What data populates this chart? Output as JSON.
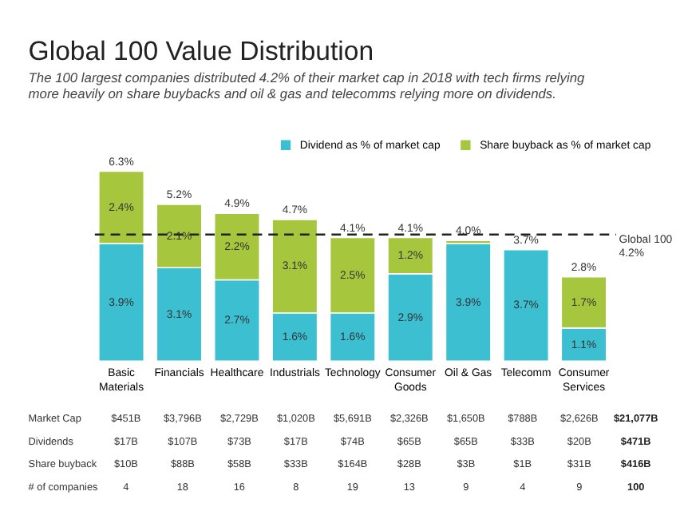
{
  "chart_data": {
    "type": "bar",
    "stacked": true,
    "title": "Global 100 Value Distribution",
    "subtitle": "The 100 largest companies distributed 4.2% of their market cap in 2018 with tech firms relying more heavily on share buybacks and oil & gas and telecomms relying more on dividends.",
    "categories": [
      "Basic Materials",
      "Financials",
      "Healthcare",
      "Industrials",
      "Technology",
      "Consumer Goods",
      "Oil & Gas",
      "Telecomm",
      "Consumer Services"
    ],
    "series": [
      {
        "name": "Dividend as % of market cap",
        "color": "#3cbfd0",
        "values": [
          3.9,
          3.1,
          2.7,
          1.6,
          1.6,
          2.9,
          3.9,
          3.7,
          1.1
        ],
        "value_labels": [
          "3.9%",
          "3.1%",
          "2.7%",
          "1.6%",
          "1.6%",
          "2.9%",
          "3.9%",
          "3.7%",
          "1.1%"
        ]
      },
      {
        "name": "Share buyback as % of market cap",
        "color": "#a6c73d",
        "values": [
          2.4,
          2.1,
          2.2,
          3.1,
          2.5,
          1.2,
          0.1,
          null,
          1.7
        ],
        "value_labels": [
          "2.4%",
          "2.1%",
          "2.2%",
          "3.1%",
          "2.5%",
          "1.2%",
          null,
          null,
          "1.7%"
        ]
      }
    ],
    "totals": [
      "6.3%",
      "5.2%",
      "4.9%",
      "4.7%",
      "4.1%",
      "4.1%",
      "4.0%",
      "3.7%",
      "2.8%"
    ],
    "ref_lines": [
      {
        "axis": "y",
        "value": 4.2,
        "label": "Global 100 4.2%",
        "line_style": "dashed",
        "color": "#222222"
      }
    ],
    "legend": "top right",
    "tick_labels": "x",
    "annotations": [
      "Market Cap",
      "$451B",
      "$3,796B",
      "$2,729B",
      "$1,020B",
      "$5,691B",
      "$2,326B",
      "$1,650B",
      "$788B",
      "$2,626B",
      "$21,077B",
      "Dividends",
      "$17B",
      "$107B",
      "$73B",
      "$17B",
      "$74B",
      "$65B",
      "$65B",
      "$33B",
      "$20B",
      "$471B",
      "Share buyback",
      "$10B",
      "$88B",
      "$58B",
      "$33B",
      "$164B",
      "$28B",
      "$3B",
      "$1B",
      "$31B",
      "$416B",
      "# of companies",
      "4",
      "18",
      "16",
      "8",
      "19",
      "13",
      "9",
      "4",
      "9",
      "100"
    ]
  }
}
